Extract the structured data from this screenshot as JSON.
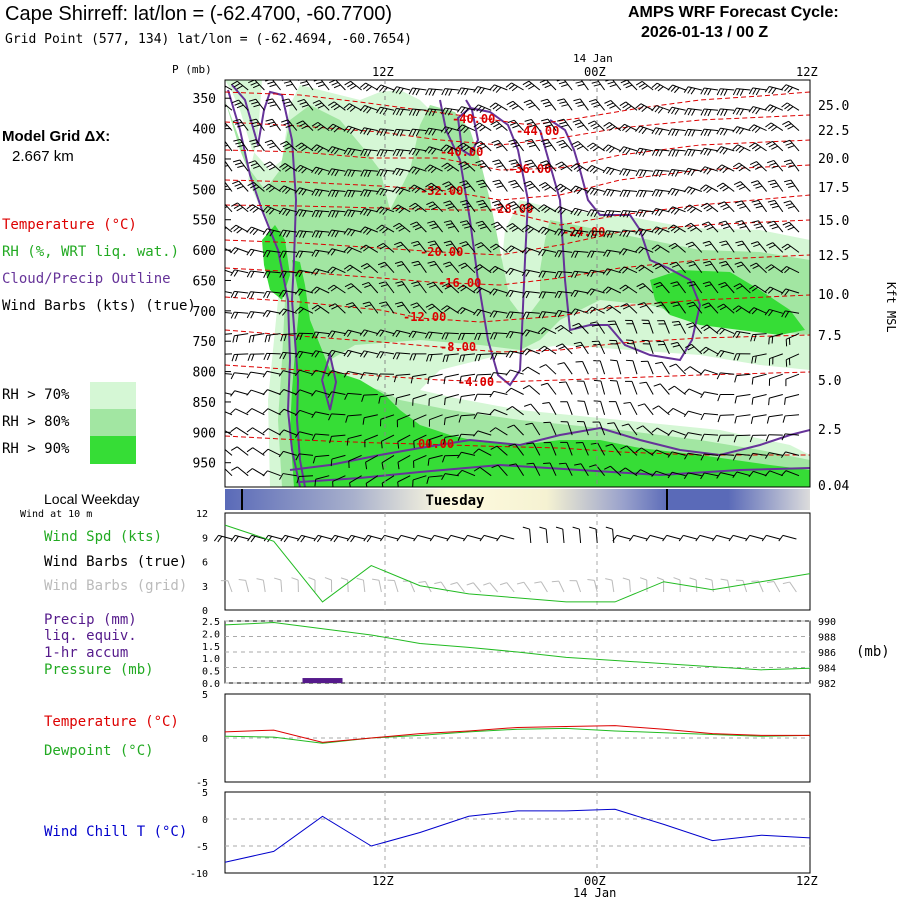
{
  "header": {
    "title": "Cape Shirreff:  lat/lon = (-62.4700, -60.7700)",
    "subtitle": "Grid Point (577, 134) lat/lon = (-62.4694, -60.7654)",
    "cycle_line1": "AMPS WRF Forecast Cycle:",
    "cycle_line2": "2026-01-13 / 00  Z"
  },
  "left_panel": {
    "grid_label": "Model Grid ΔX:",
    "grid_value": "2.667 km",
    "legend_temperature": "Temperature (°C)",
    "legend_rh": "RH (%, WRT liq. wat.)",
    "legend_cloud": "Cloud/Precip Outline",
    "legend_wind": "Wind Barbs (kts) (true)",
    "rh70": "RH > 70%",
    "rh80": "RH > 80%",
    "rh90": "RH > 90%"
  },
  "colors": {
    "rh70": "#d5f7d5",
    "rh80": "#a2e6a2",
    "rh90": "#36dd36",
    "temperature": "#dd0000",
    "cloud": "#663399",
    "wind_speed": "#22bb22",
    "pressure": "#22bb22",
    "precip": "#551a8b",
    "windchill": "#0000cc",
    "grid_barbs": "#bbbbbb"
  },
  "time_axis": {
    "top_date": "14 Jan",
    "ticks": [
      "12Z",
      "00Z",
      "12Z"
    ],
    "bottom_ticks": [
      "12Z",
      "00Z",
      "12Z"
    ],
    "bottom_date": "14 Jan"
  },
  "weekday": {
    "label": "Local Weekday",
    "day": "Tuesday",
    "wind_note": "Wind at 10 m"
  },
  "chart_data": [
    {
      "type": "heatmap",
      "title": "Vertical cross-section",
      "ylabel": "P (mb)",
      "y2label": "Kft MSL",
      "pressure_ticks": [
        350,
        400,
        450,
        500,
        550,
        600,
        650,
        700,
        750,
        800,
        850,
        900,
        950
      ],
      "height_ticks": [
        "25.0",
        "22.5",
        "20.0",
        "17.5",
        "15.0",
        "12.5",
        "10.0",
        "7.5",
        "5.0",
        "2.5",
        "0.04"
      ],
      "temperature_contour_labels": [
        "-40.00",
        "-44.00",
        "-40.00",
        "-36.00",
        "-32.00",
        "-28.00",
        "-24.00",
        "-20.00",
        "-16.00",
        "-12.00",
        "-8.00",
        "-4.00",
        "00.00"
      ]
    },
    {
      "type": "line",
      "title": "Wind speed",
      "ylabel": "Wind Spd (kts)",
      "legend_barbs_true": "Wind Barbs (true)",
      "legend_barbs_grid": "Wind Barbs (grid)",
      "ylim": [
        0,
        12
      ],
      "yticks": [
        "12",
        "9",
        "6",
        "3",
        "0"
      ],
      "hours": [
        0,
        3,
        6,
        9,
        12,
        15,
        18,
        21,
        24,
        27,
        30,
        33,
        36
      ],
      "series": [
        {
          "name": "Wind Spd (kts)",
          "values": [
            10.5,
            8.5,
            1,
            5.5,
            3,
            2,
            1.5,
            1,
            1,
            3.5,
            2.5,
            3.5,
            4.5
          ]
        }
      ]
    },
    {
      "type": "line",
      "title": "Precip and pressure",
      "legend_precip": "Precip (mm)",
      "legend_liq": "liq. equiv.",
      "legend_accum": "1-hr accum",
      "legend_pressure": "Pressure (mb)",
      "y2unit": "(mb)",
      "precip_ylim": [
        0,
        2.5
      ],
      "precip_yticks": [
        "2.5",
        "2.0",
        "1.5",
        "1.0",
        "0.5",
        "0.0"
      ],
      "pressure_ylim": [
        982,
        990
      ],
      "pressure_yticks": [
        "990",
        "988",
        "986",
        "984",
        "982"
      ],
      "hours": [
        0,
        3,
        6,
        9,
        12,
        15,
        18,
        21,
        24,
        27,
        30,
        33,
        36
      ],
      "series": [
        {
          "name": "Pressure (mb)",
          "values": [
            989.5,
            989.8,
            989,
            988.2,
            987.1,
            986.6,
            986,
            985.3,
            984.9,
            984.5,
            984.1,
            983.7,
            983.9
          ]
        },
        {
          "name": "Precip (mm)",
          "values": [
            0,
            0,
            0.2,
            0,
            0,
            0,
            0,
            0,
            0,
            0,
            0,
            0,
            0
          ]
        }
      ]
    },
    {
      "type": "line",
      "title": "Temperature and dewpoint",
      "legend_temperature": "Temperature (°C)",
      "legend_dewpoint": "Dewpoint (°C)",
      "ylim": [
        -5,
        5
      ],
      "yticks": [
        "5",
        "0",
        "-5"
      ],
      "hours": [
        0,
        3,
        6,
        9,
        12,
        15,
        18,
        21,
        24,
        27,
        30,
        33,
        36
      ],
      "series": [
        {
          "name": "Temperature (°C)",
          "values": [
            0.7,
            0.9,
            -0.5,
            0,
            0.5,
            0.8,
            1.2,
            1.3,
            1.4,
            1.0,
            0.5,
            0.3,
            0.3
          ]
        },
        {
          "name": "Dewpoint (°C)",
          "values": [
            0.2,
            0.1,
            -0.6,
            0,
            0.3,
            0.7,
            1.0,
            1.1,
            0.8,
            0.6,
            0.4,
            0.2,
            0.3
          ]
        }
      ]
    },
    {
      "type": "line",
      "title": "Wind chill",
      "legend_windchill": "Wind Chill T (°C)",
      "ylim": [
        -10,
        5
      ],
      "yticks": [
        "5",
        "0",
        "-5",
        "-10"
      ],
      "hours": [
        0,
        3,
        6,
        9,
        12,
        15,
        18,
        21,
        24,
        27,
        30,
        33,
        36
      ],
      "series": [
        {
          "name": "Wind Chill T (°C)",
          "values": [
            -8,
            -6,
            0.5,
            -5,
            -2.5,
            0.5,
            1.5,
            1.5,
            1.8,
            -1,
            -4,
            -3,
            -3.5
          ]
        }
      ]
    }
  ]
}
